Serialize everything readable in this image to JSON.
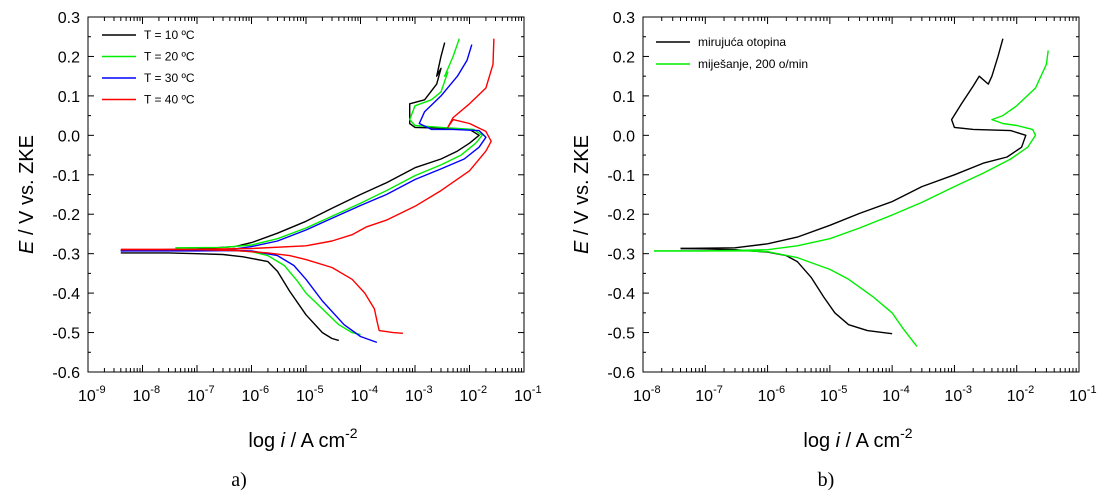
{
  "chart_data": [
    {
      "type": "line",
      "panel_label": "a)",
      "xlabel": {
        "prefix": "log ",
        "var": "i",
        "mid": " / A cm",
        "sup": "-2"
      },
      "ylabel": {
        "var": "E",
        "rest": " / V vs. ZKE"
      },
      "xscale": "log",
      "xlim": [
        1e-09,
        0.1
      ],
      "ylim": [
        -0.6,
        0.3
      ],
      "xtick_exponents": [
        -9,
        -8,
        -7,
        -6,
        -5,
        -4,
        -3,
        -2,
        -1
      ],
      "yticks": [
        "-0.6",
        "-0.5",
        "-0.4",
        "-0.3",
        "-0.2",
        "-0.1",
        "0.0",
        "0.1",
        "0.2",
        "0.3"
      ],
      "legend_position": "top-left",
      "series": [
        {
          "name": "T = 10 ºC",
          "color": "#000000",
          "cathodic": [
            [
              4e-09,
              -0.298
            ],
            [
              1e-08,
              -0.298
            ],
            [
              3e-08,
              -0.298
            ],
            [
              1e-07,
              -0.3
            ],
            [
              3e-07,
              -0.302
            ],
            [
              7e-07,
              -0.308
            ],
            [
              1e-06,
              -0.312
            ],
            [
              2e-06,
              -0.32
            ],
            [
              3e-06,
              -0.345
            ],
            [
              5e-06,
              -0.395
            ],
            [
              1e-05,
              -0.455
            ],
            [
              2e-05,
              -0.5
            ],
            [
              3e-05,
              -0.515
            ],
            [
              4e-05,
              -0.52
            ]
          ],
          "anodic": [
            [
              4e-09,
              -0.292
            ],
            [
              1e-08,
              -0.291
            ],
            [
              1e-07,
              -0.288
            ],
            [
              5e-07,
              -0.282
            ],
            [
              1e-06,
              -0.272
            ],
            [
              3e-06,
              -0.248
            ],
            [
              1e-05,
              -0.218
            ],
            [
              3e-05,
              -0.185
            ],
            [
              0.0001,
              -0.15
            ],
            [
              0.0003,
              -0.12
            ],
            [
              0.001,
              -0.082
            ],
            [
              0.003,
              -0.06
            ],
            [
              0.006,
              -0.04
            ],
            [
              0.01,
              -0.02
            ],
            [
              0.015,
              0.0
            ],
            [
              0.01,
              0.015
            ],
            [
              0.003,
              0.018
            ],
            [
              0.001,
              0.02
            ],
            [
              0.0008,
              0.03
            ],
            [
              0.0008,
              0.08
            ],
            [
              0.0015,
              0.09
            ],
            [
              0.0025,
              0.13
            ],
            [
              0.003,
              0.17
            ],
            [
              0.0025,
              0.15
            ],
            [
              0.003,
              0.2
            ],
            [
              0.0035,
              0.235
            ]
          ]
        },
        {
          "name": "T = 20 ºC",
          "color": "#00ee00",
          "cathodic": [
            [
              4e-08,
              -0.288
            ],
            [
              1e-07,
              -0.29
            ],
            [
              5e-07,
              -0.292
            ],
            [
              1e-06,
              -0.295
            ],
            [
              2e-06,
              -0.305
            ],
            [
              4e-06,
              -0.33
            ],
            [
              7e-06,
              -0.37
            ],
            [
              1e-05,
              -0.4
            ],
            [
              2e-05,
              -0.44
            ],
            [
              4e-05,
              -0.48
            ],
            [
              7e-05,
              -0.5
            ],
            [
              0.0001,
              -0.505
            ]
          ],
          "anodic": [
            [
              4e-08,
              -0.285
            ],
            [
              3e-07,
              -0.284
            ],
            [
              1e-06,
              -0.278
            ],
            [
              3e-06,
              -0.262
            ],
            [
              1e-05,
              -0.235
            ],
            [
              3e-05,
              -0.205
            ],
            [
              0.0001,
              -0.172
            ],
            [
              0.0003,
              -0.14
            ],
            [
              0.001,
              -0.102
            ],
            [
              0.003,
              -0.075
            ],
            [
              0.007,
              -0.05
            ],
            [
              0.013,
              -0.02
            ],
            [
              0.017,
              0.0
            ],
            [
              0.012,
              0.015
            ],
            [
              0.003,
              0.02
            ],
            [
              0.001,
              0.025
            ],
            [
              0.0008,
              0.04
            ],
            [
              0.001,
              0.075
            ],
            [
              0.002,
              0.09
            ],
            [
              0.003,
              0.11
            ],
            [
              0.004,
              0.16
            ],
            [
              0.0035,
              0.15
            ],
            [
              0.005,
              0.2
            ],
            [
              0.0065,
              0.245
            ]
          ]
        },
        {
          "name": "T = 30 ºC",
          "color": "#0000ff",
          "cathodic": [
            [
              4e-09,
              -0.293
            ],
            [
              1e-08,
              -0.293
            ],
            [
              1e-07,
              -0.293
            ],
            [
              5e-07,
              -0.292
            ],
            [
              1e-06,
              -0.293
            ],
            [
              3e-06,
              -0.305
            ],
            [
              6e-06,
              -0.33
            ],
            [
              1e-05,
              -0.365
            ],
            [
              2e-05,
              -0.42
            ],
            [
              5e-05,
              -0.48
            ],
            [
              0.0001,
              -0.51
            ],
            [
              0.0002,
              -0.525
            ]
          ],
          "anodic": [
            [
              4e-09,
              -0.293
            ],
            [
              1e-07,
              -0.291
            ],
            [
              5e-07,
              -0.288
            ],
            [
              1e-06,
              -0.282
            ],
            [
              3e-06,
              -0.268
            ],
            [
              1e-05,
              -0.24
            ],
            [
              3e-05,
              -0.21
            ],
            [
              0.0001,
              -0.178
            ],
            [
              0.0003,
              -0.15
            ],
            [
              0.001,
              -0.112
            ],
            [
              0.003,
              -0.085
            ],
            [
              0.008,
              -0.06
            ],
            [
              0.015,
              -0.03
            ],
            [
              0.02,
              -0.005
            ],
            [
              0.015,
              0.012
            ],
            [
              0.005,
              0.015
            ],
            [
              0.002,
              0.015
            ],
            [
              0.0012,
              0.03
            ],
            [
              0.0015,
              0.06
            ],
            [
              0.003,
              0.1
            ],
            [
              0.006,
              0.15
            ],
            [
              0.009,
              0.19
            ],
            [
              0.011,
              0.23
            ]
          ]
        },
        {
          "name": "T = 40 ºC",
          "color": "#ff0000",
          "cathodic": [
            [
              4e-09,
              -0.29
            ],
            [
              1e-07,
              -0.29
            ],
            [
              5e-07,
              -0.292
            ],
            [
              2e-06,
              -0.298
            ],
            [
              5e-06,
              -0.305
            ],
            [
              1e-05,
              -0.315
            ],
            [
              3e-05,
              -0.335
            ],
            [
              7e-05,
              -0.365
            ],
            [
              0.00012,
              -0.4
            ],
            [
              0.00018,
              -0.44
            ],
            [
              0.0002,
              -0.47
            ],
            [
              0.00022,
              -0.495
            ],
            [
              0.0004,
              -0.5
            ],
            [
              0.0006,
              -0.502
            ]
          ],
          "anodic": [
            [
              4e-09,
              -0.289
            ],
            [
              1e-07,
              -0.289
            ],
            [
              1e-06,
              -0.287
            ],
            [
              1e-05,
              -0.28
            ],
            [
              3e-05,
              -0.268
            ],
            [
              7e-05,
              -0.252
            ],
            [
              0.00013,
              -0.232
            ],
            [
              0.0003,
              -0.215
            ],
            [
              0.001,
              -0.18
            ],
            [
              0.003,
              -0.14
            ],
            [
              0.01,
              -0.09
            ],
            [
              0.02,
              -0.04
            ],
            [
              0.025,
              -0.015
            ],
            [
              0.02,
              0.01
            ],
            [
              0.01,
              0.03
            ],
            [
              0.005,
              0.04
            ],
            [
              0.004,
              0.02
            ],
            [
              0.005,
              0.045
            ],
            [
              0.01,
              0.08
            ],
            [
              0.02,
              0.12
            ],
            [
              0.027,
              0.18
            ],
            [
              0.028,
              0.245
            ]
          ]
        }
      ]
    },
    {
      "type": "line",
      "panel_label": "b)",
      "xlabel": {
        "prefix": "log ",
        "var": "i",
        "mid": " / A cm",
        "sup": "-2"
      },
      "ylabel": {
        "var": "E",
        "rest": " / V vs. ZKE"
      },
      "xscale": "log",
      "xlim": [
        1e-08,
        0.1
      ],
      "ylim": [
        -0.6,
        0.3
      ],
      "xtick_exponents": [
        -8,
        -7,
        -6,
        -5,
        -4,
        -3,
        -2,
        -1
      ],
      "yticks": [
        "-0.6",
        "-0.5",
        "-0.4",
        "-0.3",
        "-0.2",
        "-0.1",
        "0.0",
        "0.1",
        "0.2",
        "0.3"
      ],
      "legend_position": "top-left",
      "series": [
        {
          "name": "mirujuća otopina",
          "color": "#000000",
          "cathodic": [
            [
              4e-08,
              -0.287
            ],
            [
              1e-07,
              -0.288
            ],
            [
              3e-07,
              -0.29
            ],
            [
              1e-06,
              -0.296
            ],
            [
              2e-06,
              -0.305
            ],
            [
              3e-06,
              -0.32
            ],
            [
              5e-06,
              -0.36
            ],
            [
              8e-06,
              -0.41
            ],
            [
              1.2e-05,
              -0.45
            ],
            [
              2e-05,
              -0.48
            ],
            [
              4e-05,
              -0.495
            ],
            [
              0.0001,
              -0.503
            ]
          ],
          "anodic": [
            [
              4e-08,
              -0.287
            ],
            [
              3e-07,
              -0.285
            ],
            [
              1e-06,
              -0.275
            ],
            [
              3e-06,
              -0.258
            ],
            [
              1e-05,
              -0.228
            ],
            [
              3e-05,
              -0.198
            ],
            [
              0.0001,
              -0.168
            ],
            [
              0.0003,
              -0.13
            ],
            [
              0.001,
              -0.1
            ],
            [
              0.003,
              -0.07
            ],
            [
              0.007,
              -0.055
            ],
            [
              0.012,
              -0.03
            ],
            [
              0.014,
              0.0
            ],
            [
              0.008,
              0.012
            ],
            [
              0.002,
              0.015
            ],
            [
              0.001,
              0.02
            ],
            [
              0.0009,
              0.04
            ],
            [
              0.0013,
              0.08
            ],
            [
              0.002,
              0.125
            ],
            [
              0.0025,
              0.15
            ],
            [
              0.0035,
              0.13
            ],
            [
              0.004,
              0.15
            ],
            [
              0.005,
              0.2
            ],
            [
              0.006,
              0.245
            ]
          ]
        },
        {
          "name": "miješanje, 200 o/min",
          "color": "#00ee00",
          "cathodic": [
            [
              1.5e-08,
              -0.293
            ],
            [
              1e-07,
              -0.293
            ],
            [
              5e-07,
              -0.293
            ],
            [
              1e-06,
              -0.295
            ],
            [
              3e-06,
              -0.31
            ],
            [
              1e-05,
              -0.34
            ],
            [
              2e-05,
              -0.365
            ],
            [
              5e-05,
              -0.41
            ],
            [
              0.0001,
              -0.45
            ],
            [
              0.00015,
              -0.49
            ],
            [
              0.00025,
              -0.535
            ]
          ],
          "anodic": [
            [
              1.5e-08,
              -0.293
            ],
            [
              1e-07,
              -0.293
            ],
            [
              1e-06,
              -0.29
            ],
            [
              3e-06,
              -0.28
            ],
            [
              1e-05,
              -0.262
            ],
            [
              3e-05,
              -0.235
            ],
            [
              0.0001,
              -0.202
            ],
            [
              0.0003,
              -0.17
            ],
            [
              0.001,
              -0.13
            ],
            [
              0.003,
              -0.095
            ],
            [
              0.008,
              -0.06
            ],
            [
              0.015,
              -0.03
            ],
            [
              0.02,
              0.0
            ],
            [
              0.018,
              0.015
            ],
            [
              0.01,
              0.025
            ],
            [
              0.006,
              0.03
            ],
            [
              0.004,
              0.04
            ],
            [
              0.006,
              0.05
            ],
            [
              0.01,
              0.075
            ],
            [
              0.02,
              0.12
            ],
            [
              0.03,
              0.18
            ],
            [
              0.032,
              0.215
            ]
          ]
        }
      ]
    }
  ]
}
